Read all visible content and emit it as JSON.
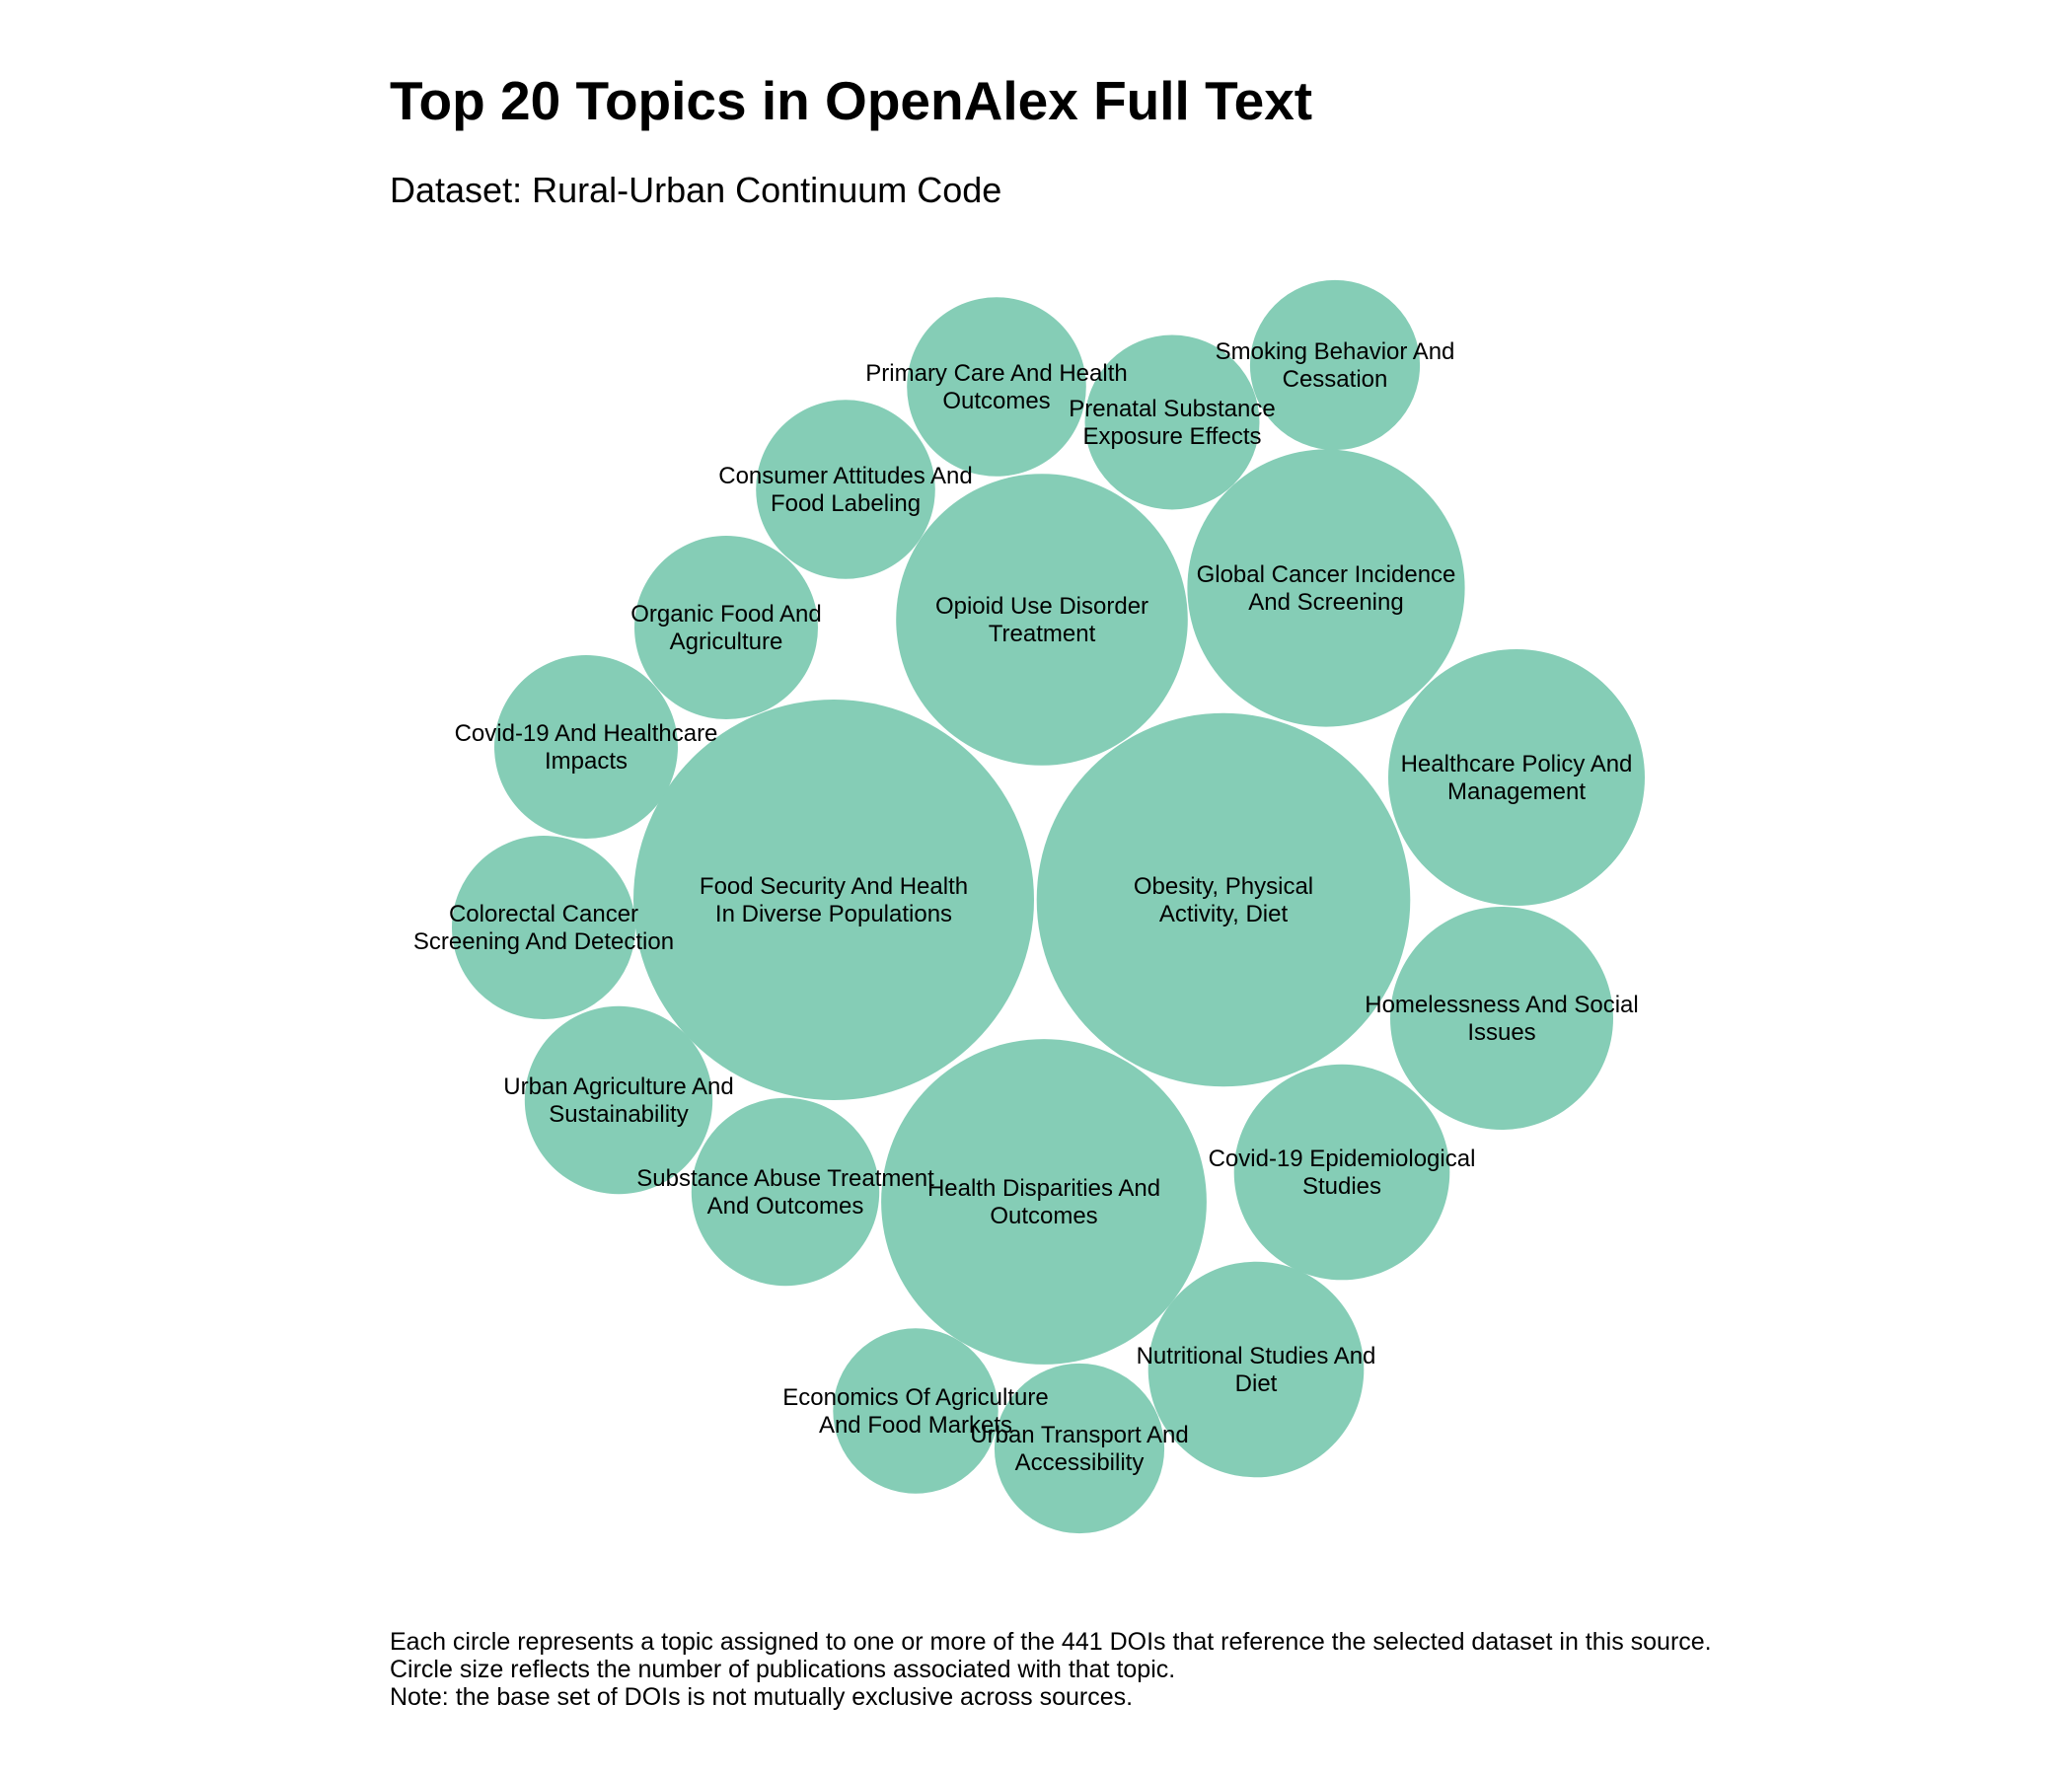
{
  "chart_data": {
    "type": "bubble",
    "title": "Top 20 Topics in OpenAlex Full Text",
    "subtitle": "Dataset: Rural-Urban Continuum Code",
    "color": "#85cdb6",
    "bubbles": [
      {
        "label": [
          "Food Security And Health",
          "In Diverse Populations"
        ],
        "relative_size": 1.0
      },
      {
        "label": [
          "Obesity, Physical",
          "Activity, Diet"
        ],
        "relative_size": 0.87
      },
      {
        "label": [
          "Health Disparities And",
          "Outcomes"
        ],
        "relative_size": 0.66
      },
      {
        "label": [
          "Opioid Use Disorder",
          "Treatment"
        ],
        "relative_size": 0.53
      },
      {
        "label": [
          "Global Cancer Incidence",
          "And Screening"
        ],
        "relative_size": 0.48
      },
      {
        "label": [
          "Healthcare Policy And",
          "Management"
        ],
        "relative_size": 0.41
      },
      {
        "label": [
          "Homelessness And Social",
          "Issues"
        ],
        "relative_size": 0.31
      },
      {
        "label": [
          "Covid-19 Epidemiological",
          "Studies"
        ],
        "relative_size": 0.29
      },
      {
        "label": [
          "Nutritional Studies And",
          "Diet"
        ],
        "relative_size": 0.29
      },
      {
        "label": [
          "Substance Abuse Treatment",
          "And Outcomes"
        ],
        "relative_size": 0.22
      },
      {
        "label": [
          "Colorectal Cancer",
          "Screening And Detection"
        ],
        "relative_size": 0.21
      },
      {
        "label": [
          "Urban Agriculture And",
          "Sustainability"
        ],
        "relative_size": 0.22
      },
      {
        "label": [
          "Covid-19 And Healthcare",
          "Impacts"
        ],
        "relative_size": 0.21
      },
      {
        "label": [
          "Organic Food And",
          "Agriculture"
        ],
        "relative_size": 0.21
      },
      {
        "label": [
          "Consumer Attitudes And",
          "Food Labeling"
        ],
        "relative_size": 0.2
      },
      {
        "label": [
          "Primary Care And Health",
          "Outcomes"
        ],
        "relative_size": 0.2
      },
      {
        "label": [
          "Prenatal Substance",
          "Exposure Effects"
        ],
        "relative_size": 0.19
      },
      {
        "label": [
          "Smoking Behavior And",
          "Cessation"
        ],
        "relative_size": 0.18
      },
      {
        "label": [
          "Economics Of Agriculture",
          "And Food Markets"
        ],
        "relative_size": 0.17
      },
      {
        "label": [
          "Urban Transport And",
          "Accessibility"
        ],
        "relative_size": 0.18
      }
    ]
  },
  "footnote": [
    "Each circle represents a topic assigned to one or more of the 441 DOIs that reference the selected dataset in this source.",
    "Circle size reflects the number of publications associated with that topic.",
    "Note: the base set of DOIs is not mutually exclusive across sources."
  ]
}
